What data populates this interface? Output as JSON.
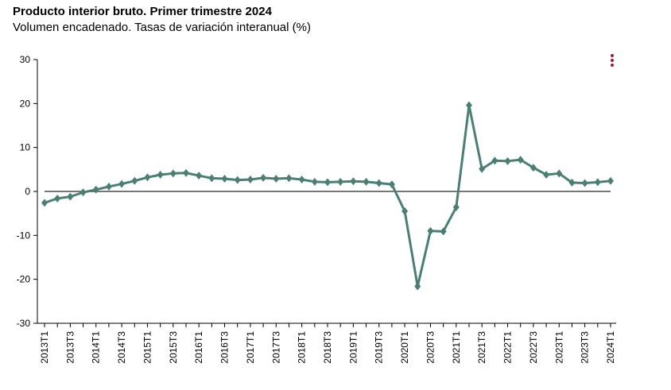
{
  "header": {
    "title": "Producto interior bruto. Primer trimestre 2024",
    "subtitle": "Volumen encadenado. Tasas de variación interanual (%)"
  },
  "menu": {
    "icon": "kebab-menu-icon"
  },
  "colors": {
    "series": "#4a7f74",
    "zero_line": "#777777",
    "axis": "#000000",
    "menu": "#9b1b30"
  },
  "chart_data": {
    "type": "line",
    "title": "Producto interior bruto. Primer trimestre 2024",
    "subtitle": "Volumen encadenado. Tasas de variación interanual (%)",
    "xlabel": "",
    "ylabel": "",
    "ylim": [
      -30,
      30
    ],
    "yticks": [
      30,
      20,
      10,
      0,
      -10,
      -20,
      -30
    ],
    "grid": false,
    "legend": "none",
    "x": [
      "2013T1",
      "2013T2",
      "2013T3",
      "2013T4",
      "2014T1",
      "2014T2",
      "2014T3",
      "2014T4",
      "2015T1",
      "2015T2",
      "2015T3",
      "2015T4",
      "2016T1",
      "2016T2",
      "2016T3",
      "2016T4",
      "2017T1",
      "2017T2",
      "2017T3",
      "2017T4",
      "2018T1",
      "2018T2",
      "2018T3",
      "2018T4",
      "2019T1",
      "2019T2",
      "2019T3",
      "2019T4",
      "2020T1",
      "2020T2",
      "2020T3",
      "2020T4",
      "2021T1",
      "2021T2",
      "2021T3",
      "2021T4",
      "2022T1",
      "2022T2",
      "2022T3",
      "2022T4",
      "2023T1",
      "2023T2",
      "2023T3",
      "2023T4",
      "2024T1"
    ],
    "x_tick_labels": [
      "2013T1",
      "2013T3",
      "2014T1",
      "2014T3",
      "2015T1",
      "2015T3",
      "2016T1",
      "2016T3",
      "2017T1",
      "2017T3",
      "2018T1",
      "2018T3",
      "2019T1",
      "2019T3",
      "2020T1",
      "2020T3",
      "2021T1",
      "2021T3",
      "2022T1",
      "2022T3",
      "2023T1",
      "2023T3",
      "2024T1"
    ],
    "series": [
      {
        "values": [
          -2.6,
          -1.6,
          -1.2,
          -0.2,
          0.4,
          1.1,
          1.7,
          2.4,
          3.2,
          3.8,
          4.1,
          4.2,
          3.6,
          3.0,
          2.9,
          2.6,
          2.7,
          3.1,
          2.9,
          3.0,
          2.7,
          2.2,
          2.1,
          2.2,
          2.3,
          2.2,
          1.9,
          1.6,
          -4.5,
          -21.6,
          -9.0,
          -9.1,
          -3.6,
          19.6,
          5.1,
          7.0,
          6.9,
          7.2,
          5.4,
          3.8,
          4.1,
          2.0,
          1.9,
          2.1,
          2.4
        ]
      }
    ]
  }
}
